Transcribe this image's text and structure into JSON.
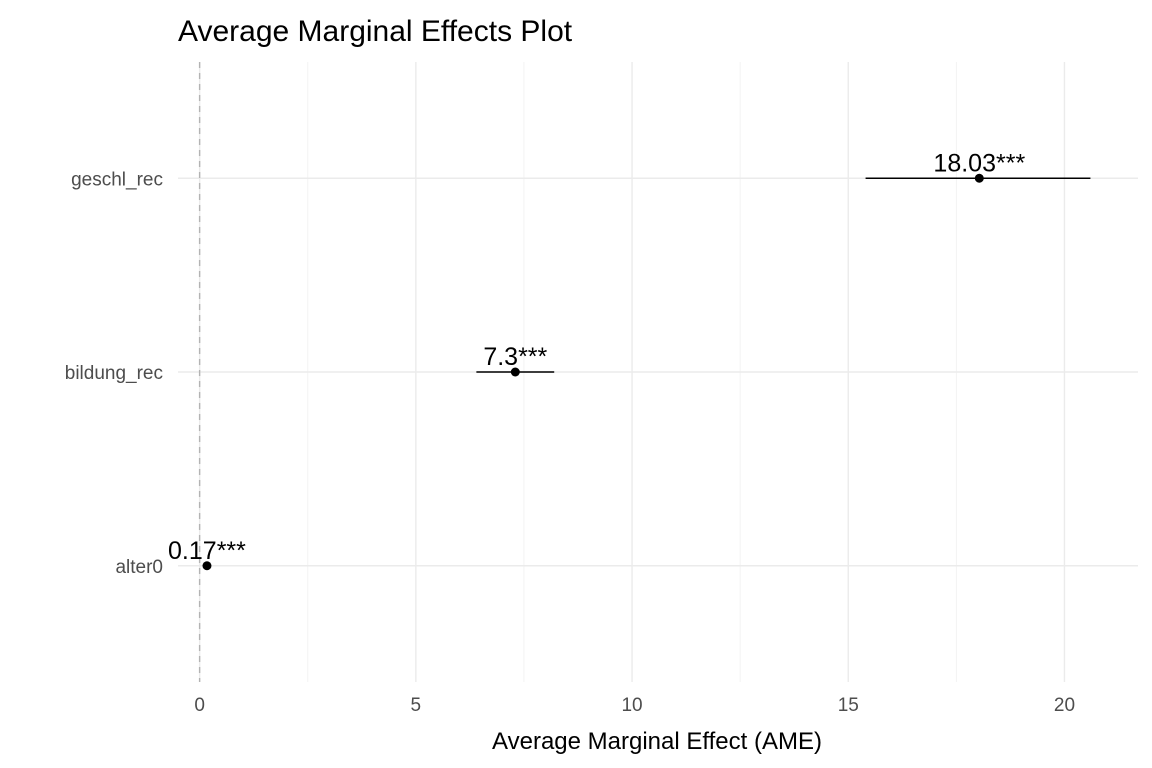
{
  "chart_data": {
    "type": "scatter",
    "subtype": "coefficient-plot",
    "title": "Average Marginal Effects Plot",
    "xlabel": "Average Marginal Effect (AME)",
    "ylabel": "",
    "xlim": [
      -0.5,
      21.7
    ],
    "xticks": [
      0,
      5,
      10,
      15,
      20
    ],
    "x_tick_labels": [
      "0",
      "5",
      "10",
      "15",
      "20"
    ],
    "reference_line": {
      "x": 0,
      "style": "dashed",
      "color": "#b3b3b3"
    },
    "grid": true,
    "legend": "none",
    "categories": [
      "alter0",
      "bildung_rec",
      "geschl_rec"
    ],
    "points": [
      {
        "category": "alter0",
        "estimate": 0.17,
        "ci_low": 0.12,
        "ci_high": 0.22,
        "label": "0.17***"
      },
      {
        "category": "bildung_rec",
        "estimate": 7.3,
        "ci_low": 6.4,
        "ci_high": 8.2,
        "label": "7.3***"
      },
      {
        "category": "geschl_rec",
        "estimate": 18.03,
        "ci_low": 15.4,
        "ci_high": 20.6,
        "label": "18.03***"
      }
    ],
    "colors": {
      "point": "#000000",
      "errorbar": "#000000",
      "grid_major": "#ebebeb",
      "grid_minor": "#f3f3f3"
    }
  }
}
